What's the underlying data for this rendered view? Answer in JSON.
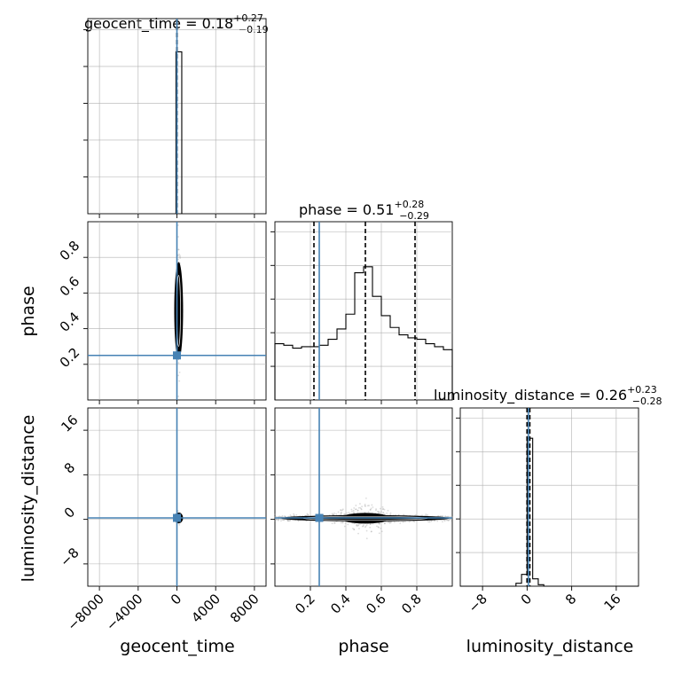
{
  "colors": {
    "truth": "#4682b4",
    "hist": "#000000",
    "grid": "#b0b0b0",
    "density": "#000000",
    "scatter": "#9a9a9a"
  },
  "titles": [
    {
      "param": "geocent_time",
      "main": "geocent_time = 0.18",
      "sup": "+0.27",
      "sub": "−0.19"
    },
    {
      "param": "phase",
      "main": "phase = 0.51",
      "sup": "+0.28",
      "sub": "−0.29"
    },
    {
      "param": "luminosity_distance",
      "main": "luminosity_distance = 0.26",
      "sup": "+0.23",
      "sub": "−0.28"
    }
  ],
  "axis_labels": {
    "x": [
      "geocent_time",
      "phase",
      "luminosity_distance"
    ],
    "y": [
      "phase",
      "luminosity_distance"
    ]
  },
  "tick_labels": {
    "geocent_time": [
      "−8000",
      "−4000",
      "0",
      "4000",
      "8000"
    ],
    "phase": [
      "0.2",
      "0.4",
      "0.6",
      "0.8"
    ],
    "luminosity_distance": [
      "−8",
      "0",
      "8",
      "16"
    ]
  },
  "chart_data": {
    "type": "corner",
    "parameters": [
      "geocent_time",
      "phase",
      "luminosity_distance"
    ],
    "ranges": {
      "geocent_time": [
        -9200,
        9200
      ],
      "phase": [
        0.0,
        1.0
      ],
      "luminosity_distance": [
        -12,
        20
      ]
    },
    "ticks": {
      "geocent_time": [
        -8000,
        -4000,
        0,
        4000,
        8000
      ],
      "phase": [
        0.2,
        0.4,
        0.6,
        0.8
      ],
      "luminosity_distance": [
        -8,
        0,
        8,
        16
      ]
    },
    "truths": {
      "geocent_time": 0.0,
      "phase": 0.25,
      "luminosity_distance": 0.26
    },
    "quantiles": {
      "geocent_time": [
        -0.01,
        0.18,
        0.45
      ],
      "phase": [
        0.22,
        0.51,
        0.79
      ],
      "luminosity_distance": [
        -0.02,
        0.26,
        0.49
      ]
    },
    "histograms": {
      "geocent_time": {
        "edges": [
          -100,
          500
        ],
        "counts": [
          1.0
        ]
      },
      "phase": {
        "edges": [
          0.0,
          0.05,
          0.1,
          0.15,
          0.2,
          0.25,
          0.3,
          0.35,
          0.4,
          0.45,
          0.5,
          0.55,
          0.6,
          0.65,
          0.7,
          0.75,
          0.8,
          0.85,
          0.9,
          0.95,
          1.0
        ],
        "counts": [
          0.38,
          0.37,
          0.35,
          0.36,
          0.36,
          0.37,
          0.41,
          0.48,
          0.58,
          0.86,
          0.9,
          0.7,
          0.57,
          0.49,
          0.44,
          0.42,
          0.41,
          0.38,
          0.36,
          0.34
        ]
      },
      "luminosity_distance": {
        "edges": [
          -12,
          -2,
          -1,
          0,
          1,
          2,
          3,
          20
        ],
        "counts": [
          0.0,
          0.02,
          0.08,
          1.0,
          0.05,
          0.01,
          0.0
        ]
      }
    },
    "grid": true
  }
}
